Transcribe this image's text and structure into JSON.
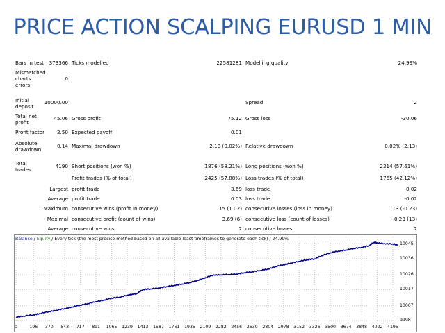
{
  "title": "PRICE ACTION SCALPING EURUSD 1 MIN",
  "report": {
    "bars_in_test_label": "Bars in test",
    "bars_in_test": "373366",
    "ticks_modelled_label": "Ticks modelled",
    "ticks_modelled": "22581281",
    "modelling_quality_label": "Modelling quality",
    "modelling_quality": "24.99%",
    "mismatched_label_1": "Mismatched",
    "mismatched_label_2": "charts",
    "mismatched_label_3": "errors",
    "mismatched": "0",
    "initial_deposit_label_1": "Initial",
    "initial_deposit_label_2": "deposit",
    "initial_deposit": "10000.00",
    "spread_label": "Spread",
    "spread": "2",
    "total_net_profit_label_1": "Total net",
    "total_net_profit_label_2": "profit",
    "total_net_profit": "45.06",
    "gross_profit_label": "Gross profit",
    "gross_profit": "75.12",
    "gross_loss_label": "Gross loss",
    "gross_loss": "-30.06",
    "profit_factor_label": "Profit factor",
    "profit_factor": "2.50",
    "expected_payoff_label": "Expected payoff",
    "expected_payoff": "0.01",
    "absolute_drawdown_label_1": "Absolute",
    "absolute_drawdown_label_2": "drawdown",
    "absolute_drawdown": "0.14",
    "maximal_drawdown_label": "Maximal drawdown",
    "maximal_drawdown": "2.13 (0.02%)",
    "relative_drawdown_label": "Relative drawdown",
    "relative_drawdown": "0.02% (2.13)",
    "total_trades_label_1": "Total",
    "total_trades_label_2": "trades",
    "total_trades": "4190",
    "short_positions_label": "Short positions (won %)",
    "short_positions": "1876 (58.21%)",
    "long_positions_label": "Long positions (won %)",
    "long_positions": "2314 (57.61%)",
    "profit_trades_label": "Profit trades (% of total)",
    "profit_trades": "2425 (57.88%)",
    "loss_trades_label": "Loss trades (% of total)",
    "loss_trades": "1765 (42.12%)",
    "largest_label": "Largest",
    "largest_profit_trade_label": "profit trade",
    "largest_profit_trade": "3.69",
    "largest_loss_trade_label": "loss trade",
    "largest_loss_trade": "-0.02",
    "average_label": "Average",
    "average_profit_trade_label": "profit trade",
    "average_profit_trade": "0.03",
    "average_loss_trade_label": "loss trade",
    "average_loss_trade": "-0.02",
    "maximum_label": "Maximum",
    "max_consec_wins_label": "consecutive wins (profit in money)",
    "max_consec_wins": "15 (1.02)",
    "max_consec_losses_label": "consecutive losses (loss in money)",
    "max_consec_losses": "13 (-0.23)",
    "maximal_label": "Maximal",
    "maximal_consec_profit_label": "consecutive profit (count of wins)",
    "maximal_consec_profit": "3.69 (6)",
    "maximal_consec_loss_label": "consecutive loss (count of losses)",
    "maximal_consec_loss": "-0.23 (13)",
    "average2_label": "Average",
    "avg_consec_wins_label": "consecutive wins",
    "avg_consec_wins": "2",
    "avg_consec_losses_label": "consecutive losses",
    "avg_consec_losses": "2"
  },
  "chart": {
    "legend_balance": "Balance",
    "legend_sep1": " / ",
    "legend_equity": "Equity",
    "legend_rest": " / Every tick (the most precise method based on all available least timeframes to generate each tick) / 24.99%",
    "balance_color": "#1a1a8c",
    "equity_color": "#009a00",
    "line_color": "#00008b"
  },
  "chart_data": {
    "type": "line",
    "title": "",
    "xlabel": "",
    "ylabel": "",
    "x_ticks": [
      0,
      196,
      370,
      543,
      717,
      891,
      1065,
      1239,
      1413,
      1587,
      1761,
      1935,
      2109,
      2282,
      2456,
      2630,
      2804,
      2978,
      3152,
      3326,
      3500,
      3674,
      3848,
      4022,
      4195
    ],
    "y_ticks": [
      9998,
      10007,
      10017,
      10026,
      10036,
      10045
    ],
    "xlim": [
      0,
      4250
    ],
    "ylim": [
      9998,
      10049.5
    ],
    "series": [
      {
        "name": "Balance",
        "x": [
          0,
          80,
          196,
          260,
          370,
          450,
          543,
          620,
          717,
          800,
          891,
          980,
          1065,
          1150,
          1239,
          1300,
          1350,
          1413,
          1500,
          1587,
          1680,
          1761,
          1850,
          1935,
          2020,
          2109,
          2200,
          2282,
          2370,
          2456,
          2540,
          2630,
          2720,
          2804,
          2890,
          2978,
          3060,
          3152,
          3240,
          3326,
          3400,
          3500,
          3590,
          3674,
          3760,
          3848,
          3930,
          3980,
          4022,
          4100,
          4195,
          4250
        ],
        "values": [
          10000,
          10000.7,
          10001.5,
          10002.2,
          10003.5,
          10004.3,
          10005.3,
          10006.3,
          10007.4,
          10008.4,
          10009.6,
          10010.6,
          10011.7,
          10012.3,
          10013.6,
          10014.2,
          10014.7,
          10017.0,
          10017.4,
          10018.0,
          10018.8,
          10019.6,
          10020.4,
          10021.3,
          10022.6,
          10024.3,
          10026.0,
          10026.0,
          10026.3,
          10026.5,
          10027.3,
          10027.9,
          10028.7,
          10029.6,
          10031.1,
          10032.2,
          10033.3,
          10034.3,
          10035.3,
          10035.8,
          10037.7,
          10039.6,
          10040.6,
          10041.3,
          10042.2,
          10042.9,
          10043.9,
          10045.9,
          10045.7,
          10045.2,
          10045.0,
          10044.5
        ]
      }
    ]
  }
}
